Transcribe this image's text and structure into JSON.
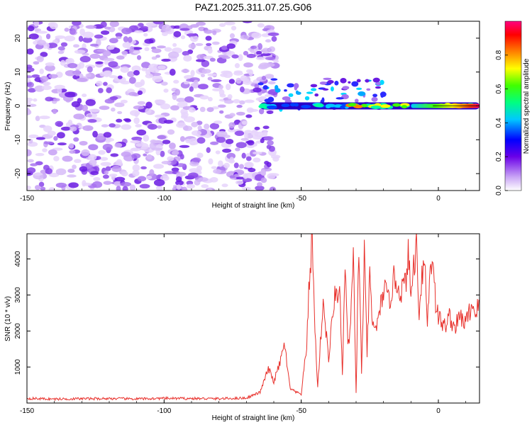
{
  "title": "PAZ1.2025.311.07.25.G06",
  "colorbar": {
    "label": "Normalized spectral amplitude",
    "ticks": [
      "0.0",
      "0.2",
      "0.4",
      "0.6",
      "0.8"
    ],
    "range": [
      0,
      1
    ]
  },
  "chart_data": [
    {
      "type": "heatmap",
      "name": "spectrogram",
      "xlabel": "Height of straight line (km)",
      "ylabel": "Frequency (Hz)",
      "xlim": [
        -150,
        15
      ],
      "ylim": [
        -25,
        25
      ],
      "xticks": [
        "-150",
        "-100",
        "-50",
        "0"
      ],
      "yticks": [
        "-20",
        "-10",
        "0",
        "10",
        "20"
      ],
      "description_of_regions": {
        "noise_region_x": [
          -150,
          -65
        ],
        "signal_line_frequency_hz": 0,
        "signal_start_x": -65,
        "peak_amplitude_region_x": [
          -10,
          15
        ]
      }
    },
    {
      "type": "line",
      "name": "snr",
      "xlabel": "Height of straight line (km)",
      "ylabel": "SNR (10 * v/v)",
      "xlim": [
        -150,
        15
      ],
      "ylim": [
        0,
        4700
      ],
      "xticks": [
        "-150",
        "-100",
        "-50",
        "0"
      ],
      "yticks": [
        "1000",
        "2000",
        "3000",
        "4000"
      ],
      "color": "#e8312c",
      "series": [
        {
          "name": "SNR",
          "x": [
            -150,
            -140,
            -130,
            -120,
            -110,
            -100,
            -90,
            -80,
            -70,
            -65,
            -62,
            -60,
            -58,
            -56,
            -55,
            -54,
            -52,
            -50,
            -48,
            -47,
            -46,
            -45,
            -44,
            -42,
            -40,
            -38,
            -36,
            -35,
            -34,
            -33,
            -32,
            -31,
            -30,
            -29,
            -28,
            -27,
            -26,
            -25,
            -24,
            -22,
            -20,
            -18,
            -16,
            -14,
            -12,
            -11,
            -10,
            -9,
            -8,
            -7,
            -6,
            -5,
            -4,
            -3,
            -2,
            -1,
            0,
            2,
            4,
            6,
            8,
            10,
            12,
            14,
            15
          ],
          "values": [
            130,
            110,
            120,
            125,
            115,
            130,
            125,
            120,
            140,
            300,
            950,
            600,
            1050,
            1650,
            900,
            400,
            300,
            250,
            1600,
            3500,
            4600,
            2000,
            450,
            2850,
            1200,
            2900,
            3200,
            700,
            3900,
            1500,
            2150,
            4000,
            300,
            4400,
            800,
            4050,
            1400,
            3500,
            2100,
            2200,
            3200,
            2800,
            3500,
            3100,
            3300,
            4100,
            3000,
            3800,
            4400,
            2500,
            3600,
            4000,
            2200,
            3700,
            4150,
            2800,
            2400,
            2100,
            2400,
            2100,
            2400,
            2200,
            2700,
            2550,
            2850
          ]
        }
      ]
    }
  ]
}
